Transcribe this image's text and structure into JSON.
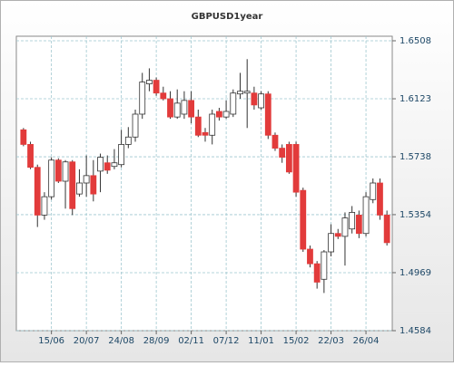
{
  "chart_data": {
    "type": "candlestick",
    "title": "GBPUSD1year",
    "categories": [
      null,
      null,
      null,
      null,
      "15/06",
      null,
      null,
      null,
      null,
      "20/07",
      null,
      null,
      null,
      null,
      "24/08",
      null,
      null,
      null,
      null,
      "28/09",
      null,
      null,
      null,
      null,
      "02/11",
      null,
      null,
      null,
      null,
      "07/12",
      null,
      null,
      null,
      null,
      "11/01",
      null,
      null,
      null,
      null,
      "15/02",
      null,
      null,
      null,
      null,
      "22/03",
      null,
      null,
      null,
      null,
      "26/04",
      null,
      null,
      null
    ],
    "open": [
      1.5917,
      1.582,
      1.5668,
      1.5351,
      1.5473,
      1.5716,
      1.5576,
      1.5704,
      1.5491,
      1.5564,
      1.5613,
      1.5643,
      1.5698,
      1.5674,
      1.5686,
      1.582,
      1.5869,
      1.6021,
      1.6222,
      1.6246,
      1.6161,
      1.6123,
      1.6002,
      1.6021,
      1.6112,
      1.6002,
      1.5899,
      1.5881,
      1.6039,
      1.6002,
      1.6021,
      1.6155,
      1.6161,
      1.6161,
      1.6063,
      1.6155,
      1.5881,
      1.5795,
      1.582,
      1.582,
      1.5515,
      1.5125,
      1.5028,
      1.4925,
      1.5107,
      1.5229,
      1.521,
      1.5259,
      1.5351,
      1.5229,
      1.5454,
      1.5564,
      1.5351
    ],
    "high": [
      1.5929,
      1.5838,
      1.5686,
      1.5503,
      1.5735,
      1.5728,
      1.5716,
      1.5716,
      1.5655,
      1.5747,
      1.5716,
      1.5759,
      1.5747,
      1.5789,
      1.5917,
      1.5935,
      1.6051,
      1.6295,
      1.6325,
      1.6264,
      1.6203,
      1.6173,
      1.6185,
      1.6173,
      1.6173,
      1.6051,
      1.5929,
      1.6051,
      1.6063,
      1.6112,
      1.6185,
      1.6295,
      1.6386,
      1.6203,
      1.6173,
      1.6173,
      1.5899,
      1.582,
      1.5838,
      1.5838,
      1.5533,
      1.5149,
      1.5046,
      1.5119,
      1.529,
      1.5259,
      1.5369,
      1.5411,
      1.5381,
      1.5503,
      1.5594,
      1.5594,
      1.5381
    ],
    "low": [
      1.5808,
      1.5656,
      1.5272,
      1.532,
      1.5454,
      1.5564,
      1.5394,
      1.5351,
      1.5473,
      1.5473,
      1.5442,
      1.5503,
      1.5625,
      1.5655,
      1.5668,
      1.5795,
      1.5838,
      1.599,
      1.6173,
      1.6143,
      1.6112,
      1.599,
      1.599,
      1.599,
      1.596,
      1.5869,
      1.5838,
      1.582,
      1.5978,
      1.599,
      1.6002,
      1.6123,
      1.5929,
      1.6051,
      1.6051,
      1.5856,
      1.5777,
      1.5698,
      1.5625,
      1.5473,
      1.5107,
      1.5004,
      1.4863,
      1.4834,
      1.5077,
      1.5192,
      1.5016,
      1.5229,
      1.5198,
      1.521,
      1.543,
      1.532,
      1.5149
    ],
    "close": [
      1.582,
      1.5668,
      1.5351,
      1.5473,
      1.5716,
      1.5576,
      1.5704,
      1.5394,
      1.5564,
      1.5613,
      1.5491,
      1.5735,
      1.5649,
      1.5698,
      1.582,
      1.5869,
      1.6021,
      1.6234,
      1.6246,
      1.6161,
      1.6123,
      1.6002,
      1.6094,
      1.6112,
      1.6002,
      1.5881,
      1.5881,
      1.6021,
      1.6002,
      1.6039,
      1.6161,
      1.6173,
      1.6173,
      1.6082,
      1.6155,
      1.5881,
      1.5795,
      1.5735,
      1.5637,
      1.5503,
      1.5125,
      1.5028,
      1.4906,
      1.5107,
      1.5229,
      1.521,
      1.5332,
      1.5369,
      1.5229,
      1.5473,
      1.5564,
      1.5351,
      1.5168
    ],
    "up_color": "#ffffff",
    "down_color": "#e23b3b",
    "ylim": [
      1.4584,
      1.6538
    ],
    "yticks": [
      1.4584,
      1.4969,
      1.5354,
      1.5738,
      1.6123,
      1.6508
    ],
    "grid": true
  }
}
